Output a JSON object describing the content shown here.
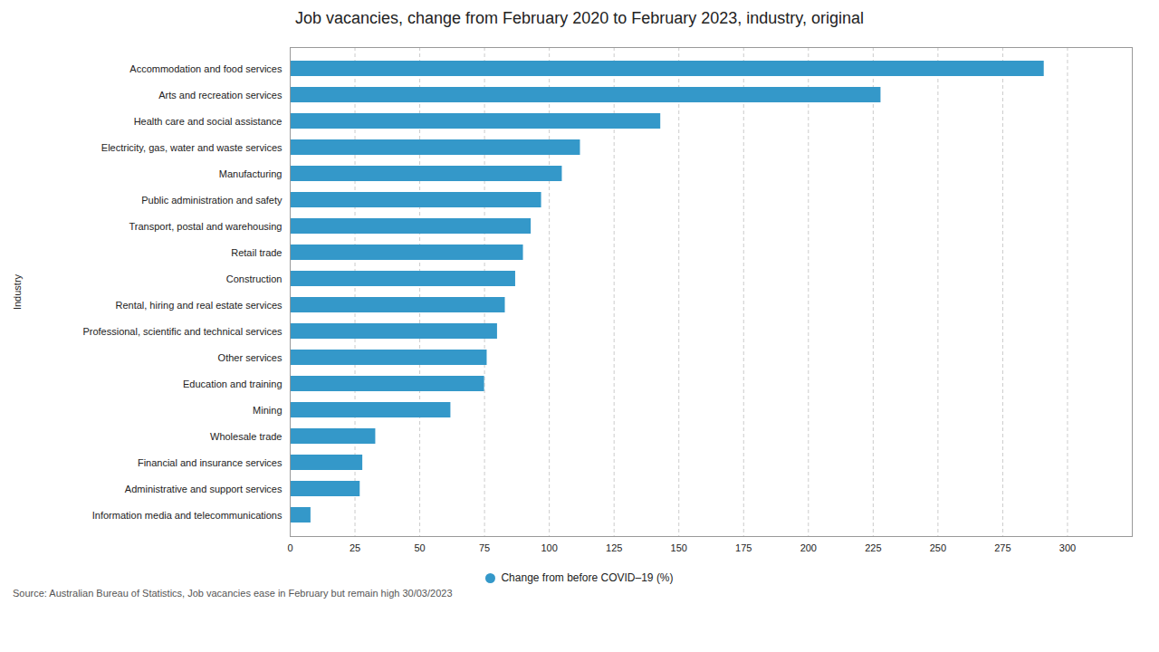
{
  "chart_data": {
    "type": "bar",
    "orientation": "horizontal",
    "title": "Job vacancies, change from February 2020 to February 2023, industry, original",
    "categories": [
      "Information media and telecommunications",
      "Administrative and support services",
      "Financial and insurance services",
      "Wholesale trade",
      "Mining",
      "Education and training",
      "Other services",
      "Professional, scientific and technical services",
      "Rental, hiring and real estate services",
      "Construction",
      "Retail trade",
      "Transport, postal and warehousing",
      "Public administration and safety",
      "Manufacturing",
      "Electricity, gas, water and waste services",
      "Health care and social assistance",
      "Arts and recreation services",
      "Accommodation and food services"
    ],
    "series": [
      {
        "name": "Change from before COVID–19 (%)",
        "color": "#3498c9",
        "values": [
          8,
          27,
          28,
          33,
          62,
          75,
          76,
          80,
          83,
          87,
          90,
          93,
          97,
          105,
          112,
          143,
          228,
          291
        ]
      }
    ],
    "xlim": [
      0,
      325
    ],
    "xticks": [
      0,
      25,
      50,
      75,
      100,
      125,
      150,
      175,
      200,
      225,
      250,
      275,
      300
    ],
    "ylabel": "Industry",
    "grid": true,
    "legend": "bottom",
    "caption": "Source: Australian Bureau of Statistics, Job vacancies ease in February but remain high 30/03/2023"
  }
}
